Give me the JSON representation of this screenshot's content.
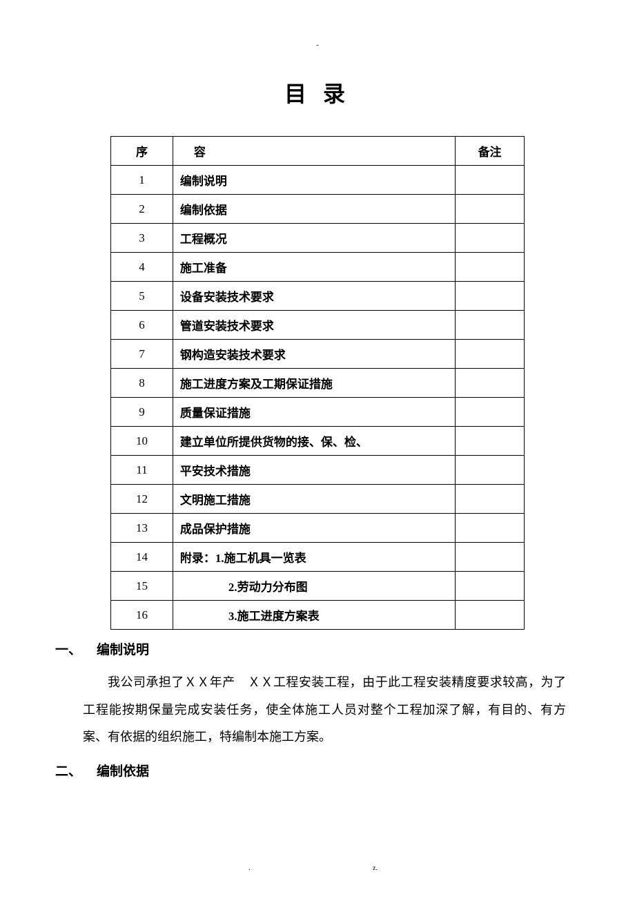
{
  "top_mark": "-",
  "title": "目 录",
  "toc": {
    "columns": [
      "序",
      "容",
      "备注"
    ],
    "rows": [
      {
        "seq": "1",
        "content": "编制说明",
        "remark": ""
      },
      {
        "seq": "2",
        "content": "编制依据",
        "remark": ""
      },
      {
        "seq": "3",
        "content": "工程概况",
        "remark": ""
      },
      {
        "seq": "4",
        "content": "施工准备",
        "remark": ""
      },
      {
        "seq": "5",
        "content": "设备安装技术要求",
        "remark": ""
      },
      {
        "seq": "6",
        "content": "管道安装技术要求",
        "remark": ""
      },
      {
        "seq": "7",
        "content": "钢构造安装技术要求",
        "remark": ""
      },
      {
        "seq": "8",
        "content": "施工进度方案及工期保证措施",
        "remark": ""
      },
      {
        "seq": "9",
        "content": "质量保证措施",
        "remark": ""
      },
      {
        "seq": "10",
        "content": "建立单位所提供货物的接、保、检、",
        "remark": ""
      },
      {
        "seq": "11",
        "content": "平安技术措施",
        "remark": ""
      },
      {
        "seq": "12",
        "content": "文明施工措施",
        "remark": ""
      },
      {
        "seq": "13",
        "content": "成品保护措施",
        "remark": ""
      },
      {
        "seq": "14",
        "content": "附录：1.施工机具一览表",
        "remark": ""
      },
      {
        "seq": "15",
        "content": "2.劳动力分布图",
        "remark": "",
        "indent": true
      },
      {
        "seq": "16",
        "content": "3.施工进度方案表",
        "remark": "",
        "indent": true
      }
    ]
  },
  "sections": [
    {
      "num": "一、",
      "heading": "编制说明",
      "body": "我公司承担了ＸＸ年产　ＸＸ工程安装工程，由于此工程安装精度要求较高，为了工程能按期保量完成安装任务，使全体施工人员对整个工程加深了解，有目的、有方案、有依据的组织施工，特编制本施工方案。"
    },
    {
      "num": "二、",
      "heading": "编制依据",
      "body": ""
    }
  ],
  "footer": {
    "left": ".",
    "right": "z."
  }
}
